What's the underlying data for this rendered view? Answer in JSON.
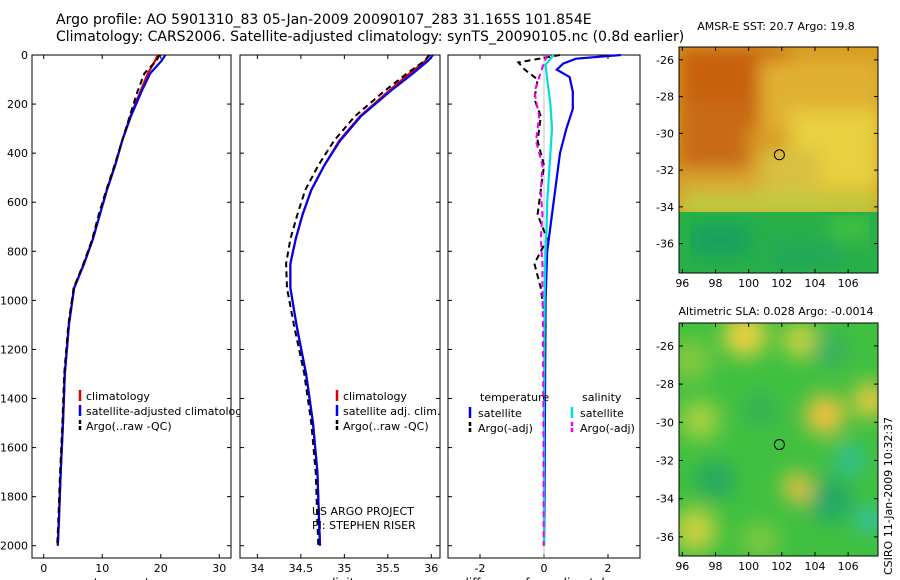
{
  "header": {
    "title_line1": "Argo profile: AO 5901310_83 05-Jan-2009 20090107_283 31.165S 101.854E",
    "title_line2": "Climatology: CARS2006. Satellite-adjusted climatology: synTS_20090105.nc (0.8d earlier)"
  },
  "footer": {
    "project_line1": "US ARGO PROJECT",
    "project_line2": "PI: STEPHEN RISER",
    "credit": "CSIRO 11-Jan-2009 10:32:37"
  },
  "colors": {
    "climatology": "#e00000",
    "satellite": "#0000ee",
    "argo": "#000000",
    "sat_salinity": "#00dddd",
    "argo_adj_salinity": "#ee00ee",
    "profile_marker": "#000000"
  },
  "chart_data": [
    {
      "type": "line",
      "xlabel": "temperature",
      "ylabel": "",
      "xlim": [
        -2,
        32
      ],
      "ylim": [
        2050,
        0
      ],
      "xticks": [
        0,
        10,
        20,
        30
      ],
      "yticks": [
        0,
        200,
        400,
        600,
        800,
        1000,
        1200,
        1400,
        1600,
        1800,
        2000
      ],
      "legend": [
        "climatology",
        "satellite-adjusted climatology",
        "Argo(..raw -QC)"
      ],
      "series": [
        {
          "name": "climatology",
          "style": "solid",
          "x": [
            19.5,
            19.0,
            17.8,
            16.5,
            14.8,
            13.4,
            12.2,
            10.8,
            9.6,
            8.4,
            6.9,
            5.2,
            4.3,
            3.6,
            3.3,
            2.9,
            2.6,
            2.4
          ],
          "y": [
            0,
            25,
            75,
            150,
            250,
            350,
            450,
            550,
            650,
            750,
            850,
            950,
            1100,
            1300,
            1500,
            1700,
            1900,
            2000
          ]
        },
        {
          "name": "satellite-adjusted climatology",
          "style": "solid",
          "x": [
            20.8,
            20.1,
            18.2,
            16.7,
            14.9,
            13.4,
            12.2,
            10.8,
            9.6,
            8.4,
            6.9,
            5.2,
            4.3,
            3.6,
            3.3,
            2.9,
            2.6,
            2.4
          ],
          "y": [
            0,
            25,
            75,
            150,
            250,
            350,
            450,
            550,
            650,
            750,
            850,
            950,
            1100,
            1300,
            1500,
            1700,
            1900,
            2000
          ]
        },
        {
          "name": "Argo(..raw -QC)",
          "style": "dashed",
          "x": [
            19.8,
            19.2,
            17.2,
            16.0,
            14.7,
            13.4,
            12.1,
            10.7,
            9.4,
            8.3,
            6.8,
            5.1,
            4.2,
            3.5,
            3.2,
            2.8,
            2.5,
            2.3
          ],
          "y": [
            0,
            25,
            75,
            150,
            250,
            350,
            450,
            550,
            650,
            750,
            850,
            950,
            1100,
            1300,
            1500,
            1700,
            1900,
            2000
          ]
        }
      ]
    },
    {
      "type": "line",
      "xlabel": "salinity",
      "ylabel": "",
      "xlim": [
        33.8,
        36.1
      ],
      "ylim": [
        2050,
        0
      ],
      "xticks": [
        34,
        34.5,
        35,
        35.5,
        36
      ],
      "legend": [
        "climatology",
        "satellite adj. clim.",
        "Argo(..raw -QC)"
      ],
      "series": [
        {
          "name": "climatology",
          "style": "solid",
          "x": [
            35.97,
            35.93,
            35.75,
            35.5,
            35.18,
            34.94,
            34.77,
            34.62,
            34.52,
            34.44,
            34.38,
            34.38,
            34.45,
            34.56,
            34.64,
            34.69,
            34.71,
            34.72
          ],
          "y": [
            0,
            25,
            75,
            150,
            250,
            350,
            450,
            550,
            650,
            750,
            850,
            950,
            1100,
            1300,
            1500,
            1700,
            1900,
            2000
          ]
        },
        {
          "name": "satellite adj. clim.",
          "style": "solid",
          "x": [
            36.02,
            35.96,
            35.79,
            35.52,
            35.19,
            34.95,
            34.77,
            34.62,
            34.52,
            34.44,
            34.38,
            34.38,
            34.45,
            34.56,
            34.64,
            34.69,
            34.71,
            34.72
          ],
          "y": [
            0,
            25,
            75,
            150,
            250,
            350,
            450,
            550,
            650,
            750,
            850,
            950,
            1100,
            1300,
            1500,
            1700,
            1900,
            2000
          ]
        },
        {
          "name": "Argo(..raw -QC)",
          "style": "dashed",
          "x": [
            35.98,
            35.92,
            35.72,
            35.45,
            35.12,
            34.88,
            34.7,
            34.55,
            34.46,
            34.38,
            34.33,
            34.34,
            34.42,
            34.54,
            34.62,
            34.67,
            34.69,
            34.7
          ],
          "y": [
            0,
            25,
            75,
            150,
            250,
            350,
            450,
            550,
            650,
            750,
            850,
            950,
            1100,
            1300,
            1500,
            1700,
            1900,
            2000
          ]
        }
      ]
    },
    {
      "type": "line",
      "xlabel": "difference from climatology",
      "ylabel": "",
      "xlim": [
        -3,
        3
      ],
      "ylim": [
        2050,
        0
      ],
      "xticks": [
        -2,
        0,
        2
      ],
      "legend_groups": [
        {
          "heading": "temperature",
          "entries": [
            "satellite",
            "Argo(-adj)"
          ]
        },
        {
          "heading": "salinity",
          "entries": [
            "satellite",
            "Argo(-adj)"
          ]
        }
      ],
      "series": [
        {
          "name": "temperature satellite",
          "style": "solid",
          "x": [
            2.4,
            1.0,
            0.6,
            0.4,
            0.8,
            0.9,
            0.9,
            0.7,
            0.5,
            0.4,
            0.3,
            0.2,
            0.1,
            0.05,
            0.03,
            0.02,
            0.0
          ],
          "y": [
            0,
            15,
            35,
            60,
            90,
            150,
            220,
            300,
            400,
            500,
            600,
            700,
            800,
            1000,
            1400,
            1800,
            2000
          ]
        },
        {
          "name": "temperature Argo(-adj)",
          "style": "dashed",
          "x": [
            0.5,
            -0.8,
            -0.6,
            -0.2,
            -0.3,
            -0.1,
            -0.2,
            0.0,
            -0.1,
            -0.2,
            0.1,
            -0.3,
            -0.1,
            0.05,
            0.0,
            0.0,
            0.0
          ],
          "y": [
            0,
            30,
            60,
            100,
            180,
            250,
            350,
            450,
            550,
            650,
            750,
            850,
            950,
            1100,
            1400,
            1800,
            2000
          ]
        },
        {
          "name": "salinity satellite",
          "style": "solid",
          "x": [
            0.3,
            0.05,
            0.1,
            0.2,
            0.25,
            0.2,
            0.15,
            0.1,
            0.08,
            0.05,
            0.03,
            0.02,
            0.0,
            0.0
          ],
          "y": [
            0,
            40,
            100,
            200,
            300,
            400,
            500,
            600,
            700,
            800,
            900,
            1000,
            1400,
            2000
          ]
        },
        {
          "name": "salinity Argo(-adj)",
          "style": "dashed",
          "x": [
            0.1,
            -0.05,
            -0.3,
            -0.15,
            -0.25,
            -0.05,
            -0.1,
            -0.05,
            -0.1,
            -0.05,
            -0.05,
            -0.03,
            -0.02,
            -0.01
          ],
          "y": [
            0,
            50,
            150,
            250,
            350,
            450,
            550,
            650,
            750,
            850,
            950,
            1100,
            1500,
            2000
          ]
        }
      ]
    },
    {
      "type": "heatmap",
      "title": "AMSR-E SST: 20.7  Argo: 19.8",
      "xlim": [
        95.8,
        107.8
      ],
      "ylim": [
        -37.6,
        -25.3
      ],
      "xticks": [
        96,
        98,
        100,
        102,
        104,
        106
      ],
      "yticks": [
        -26,
        -28,
        -30,
        -32,
        -34,
        -36
      ],
      "marker": {
        "lon": 101.854,
        "lat": -31.165
      }
    },
    {
      "type": "heatmap",
      "title": "Altimetric SLA: 0.028  Argo: -0.0014",
      "xlim": [
        95.8,
        107.8
      ],
      "ylim": [
        -37.0,
        -24.8
      ],
      "xticks": [
        96,
        98,
        100,
        102,
        104,
        106
      ],
      "yticks": [
        -26,
        -28,
        -30,
        -32,
        -34,
        -36
      ],
      "marker": {
        "lon": 101.854,
        "lat": -31.165
      }
    }
  ]
}
